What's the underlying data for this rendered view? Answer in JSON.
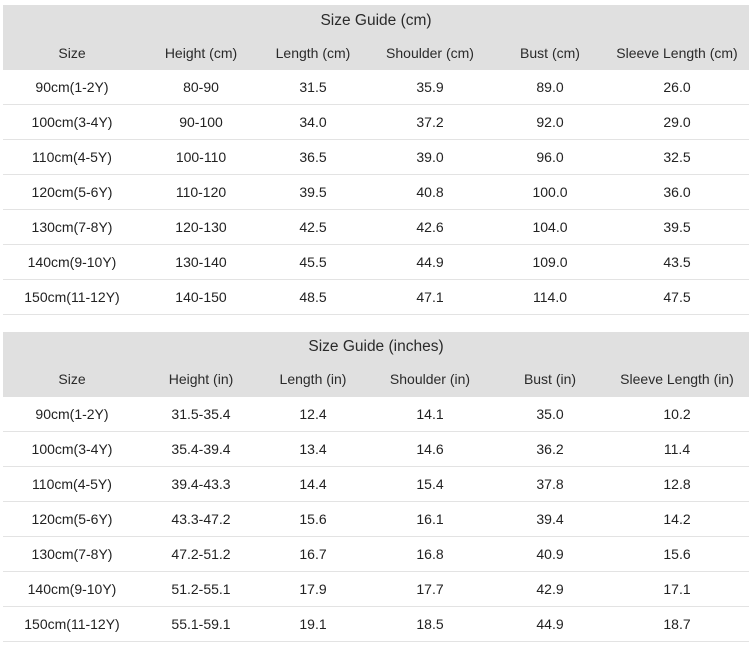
{
  "cm": {
    "title": "Size Guide (cm)",
    "headers": [
      "Size",
      "Height (cm)",
      "Length (cm)",
      "Shoulder (cm)",
      "Bust (cm)",
      "Sleeve Length (cm)"
    ],
    "rows": [
      [
        "90cm(1-2Y)",
        "80-90",
        "31.5",
        "35.9",
        "89.0",
        "26.0"
      ],
      [
        "100cm(3-4Y)",
        "90-100",
        "34.0",
        "37.2",
        "92.0",
        "29.0"
      ],
      [
        "110cm(4-5Y)",
        "100-110",
        "36.5",
        "39.0",
        "96.0",
        "32.5"
      ],
      [
        "120cm(5-6Y)",
        "110-120",
        "39.5",
        "40.8",
        "100.0",
        "36.0"
      ],
      [
        "130cm(7-8Y)",
        "120-130",
        "42.5",
        "42.6",
        "104.0",
        "39.5"
      ],
      [
        "140cm(9-10Y)",
        "130-140",
        "45.5",
        "44.9",
        "109.0",
        "43.5"
      ],
      [
        "150cm(11-12Y)",
        "140-150",
        "48.5",
        "47.1",
        "114.0",
        "47.5"
      ]
    ]
  },
  "inches": {
    "title": "Size Guide (inches)",
    "headers": [
      "Size",
      "Height (in)",
      "Length (in)",
      "Shoulder (in)",
      "Bust (in)",
      "Sleeve Length (in)"
    ],
    "rows": [
      [
        "90cm(1-2Y)",
        "31.5-35.4",
        "12.4",
        "14.1",
        "35.0",
        "10.2"
      ],
      [
        "100cm(3-4Y)",
        "35.4-39.4",
        "13.4",
        "14.6",
        "36.2",
        "11.4"
      ],
      [
        "110cm(4-5Y)",
        "39.4-43.3",
        "14.4",
        "15.4",
        "37.8",
        "12.8"
      ],
      [
        "120cm(5-6Y)",
        "43.3-47.2",
        "15.6",
        "16.1",
        "39.4",
        "14.2"
      ],
      [
        "130cm(7-8Y)",
        "47.2-51.2",
        "16.7",
        "16.8",
        "40.9",
        "15.6"
      ],
      [
        "140cm(9-10Y)",
        "51.2-55.1",
        "17.9",
        "17.7",
        "42.9",
        "17.1"
      ],
      [
        "150cm(11-12Y)",
        "55.1-59.1",
        "19.1",
        "18.5",
        "44.9",
        "18.7"
      ]
    ]
  }
}
